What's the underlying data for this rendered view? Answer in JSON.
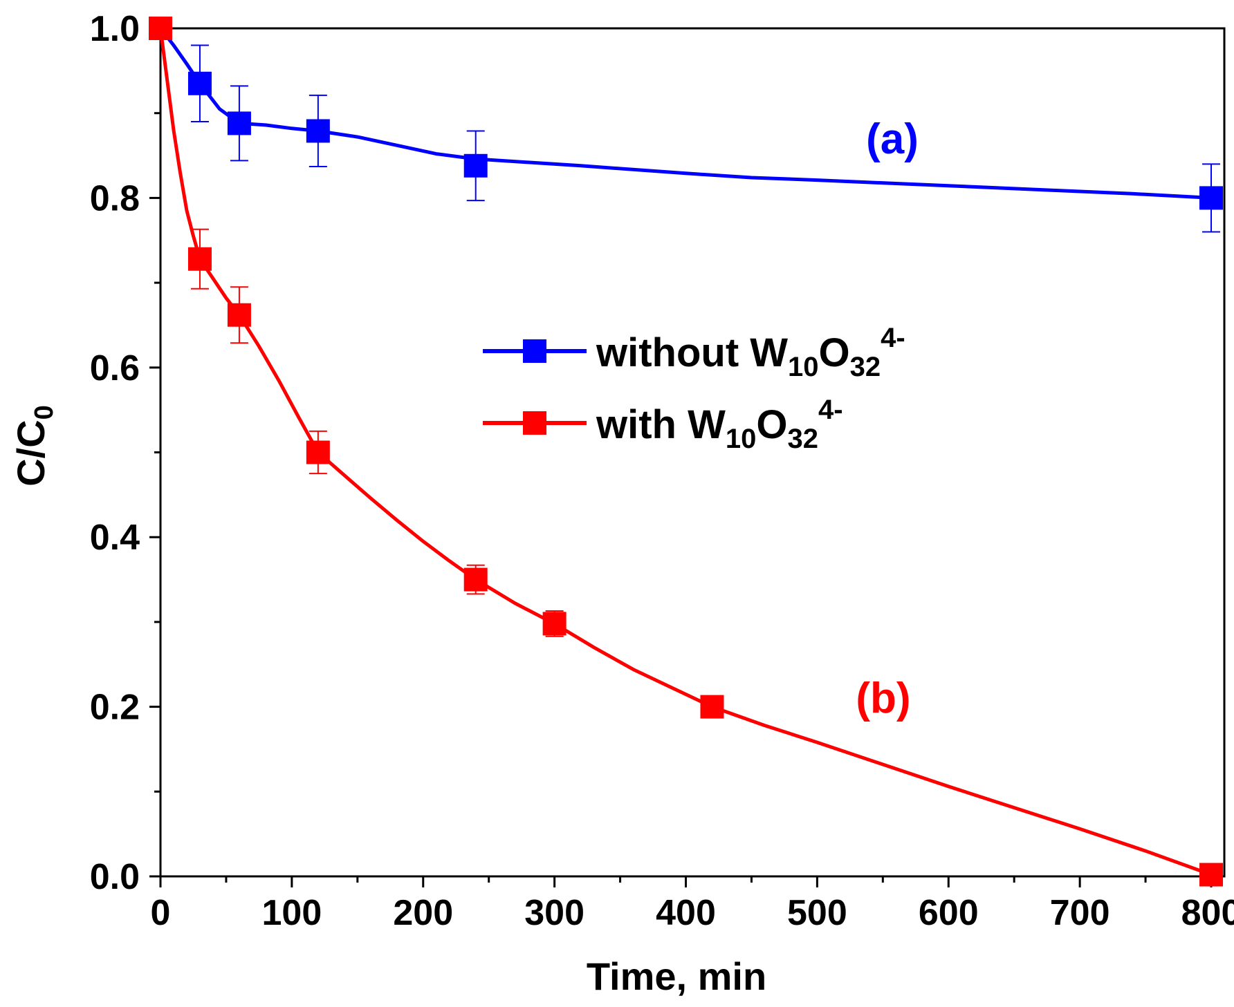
{
  "chart_data": {
    "type": "line",
    "xlabel": "Time, min",
    "ylabel_main": "C/C",
    "ylabel_sub": "0",
    "xlim": [
      0,
      810
    ],
    "ylim": [
      0,
      1.0
    ],
    "x_ticks": [
      0,
      100,
      200,
      300,
      400,
      500,
      600,
      700,
      800
    ],
    "x_tick_labels": [
      "0",
      "100",
      "200",
      "300",
      "400",
      "500",
      "600",
      "700",
      "800"
    ],
    "y_ticks": [
      0.0,
      0.2,
      0.4,
      0.6,
      0.8,
      1.0
    ],
    "y_tick_labels": [
      "0.0",
      "0.2",
      "0.4",
      "0.6",
      "0.8",
      "1.0"
    ],
    "x_minor_ticks": [
      50,
      150,
      250,
      350,
      450,
      550,
      650,
      750
    ],
    "y_minor_ticks": [
      0.1,
      0.3,
      0.5,
      0.7,
      0.9
    ],
    "series": [
      {
        "name": "without W10O32 4-",
        "color": "#0000ff",
        "annotation": "(a)",
        "markers": [
          {
            "x": 0,
            "y": 1.0,
            "err": 0
          },
          {
            "x": 30,
            "y": 0.935,
            "err": 0.045
          },
          {
            "x": 60,
            "y": 0.888,
            "err": 0.044
          },
          {
            "x": 120,
            "y": 0.879,
            "err": 0.042
          },
          {
            "x": 240,
            "y": 0.838,
            "err": 0.041
          },
          {
            "x": 800,
            "y": 0.8,
            "err": 0.04
          }
        ],
        "curve": [
          [
            0,
            1.0
          ],
          [
            10,
            0.98
          ],
          [
            20,
            0.958
          ],
          [
            30,
            0.935
          ],
          [
            45,
            0.905
          ],
          [
            60,
            0.888
          ],
          [
            80,
            0.886
          ],
          [
            100,
            0.882
          ],
          [
            120,
            0.879
          ],
          [
            150,
            0.872
          ],
          [
            180,
            0.862
          ],
          [
            210,
            0.852
          ],
          [
            240,
            0.846
          ],
          [
            280,
            0.842
          ],
          [
            320,
            0.838
          ],
          [
            400,
            0.829
          ],
          [
            450,
            0.824
          ],
          [
            500,
            0.821
          ],
          [
            560,
            0.817
          ],
          [
            620,
            0.813
          ],
          [
            680,
            0.809
          ],
          [
            740,
            0.805
          ],
          [
            800,
            0.8
          ]
        ]
      },
      {
        "name": "with W10O32 4-",
        "color": "#ff0000",
        "annotation": "(b)",
        "markers": [
          {
            "x": 0,
            "y": 1.0,
            "err": 0
          },
          {
            "x": 30,
            "y": 0.728,
            "err": 0.035
          },
          {
            "x": 60,
            "y": 0.662,
            "err": 0.033
          },
          {
            "x": 120,
            "y": 0.5,
            "err": 0.025
          },
          {
            "x": 240,
            "y": 0.35,
            "err": 0.017
          },
          {
            "x": 300,
            "y": 0.298,
            "err": 0.015
          },
          {
            "x": 420,
            "y": 0.2,
            "err": 0
          },
          {
            "x": 800,
            "y": 0.002,
            "err": 0
          }
        ],
        "curve": [
          [
            0,
            1.0
          ],
          [
            5,
            0.94
          ],
          [
            10,
            0.88
          ],
          [
            15,
            0.83
          ],
          [
            20,
            0.785
          ],
          [
            25,
            0.755
          ],
          [
            30,
            0.728
          ],
          [
            40,
            0.705
          ],
          [
            50,
            0.682
          ],
          [
            60,
            0.662
          ],
          [
            75,
            0.625
          ],
          [
            90,
            0.585
          ],
          [
            105,
            0.542
          ],
          [
            120,
            0.5
          ],
          [
            140,
            0.473
          ],
          [
            160,
            0.446
          ],
          [
            180,
            0.42
          ],
          [
            200,
            0.395
          ],
          [
            220,
            0.372
          ],
          [
            240,
            0.35
          ],
          [
            270,
            0.322
          ],
          [
            300,
            0.298
          ],
          [
            330,
            0.27
          ],
          [
            360,
            0.244
          ],
          [
            390,
            0.222
          ],
          [
            420,
            0.2
          ],
          [
            460,
            0.178
          ],
          [
            500,
            0.158
          ],
          [
            550,
            0.132
          ],
          [
            600,
            0.106
          ],
          [
            650,
            0.081
          ],
          [
            700,
            0.056
          ],
          [
            750,
            0.03
          ],
          [
            800,
            0.002
          ]
        ]
      }
    ],
    "legend": [
      {
        "text_main": "without W",
        "sub1": "10",
        "mid": "O",
        "sub2": "32",
        "sup": "4-",
        "color": "#0000ff"
      },
      {
        "text_main": "with W",
        "sub1": "10",
        "mid": "O",
        "sub2": "32",
        "sup": "4-",
        "color": "#ff0000"
      }
    ],
    "legend_position": "center-right",
    "grid": false
  }
}
